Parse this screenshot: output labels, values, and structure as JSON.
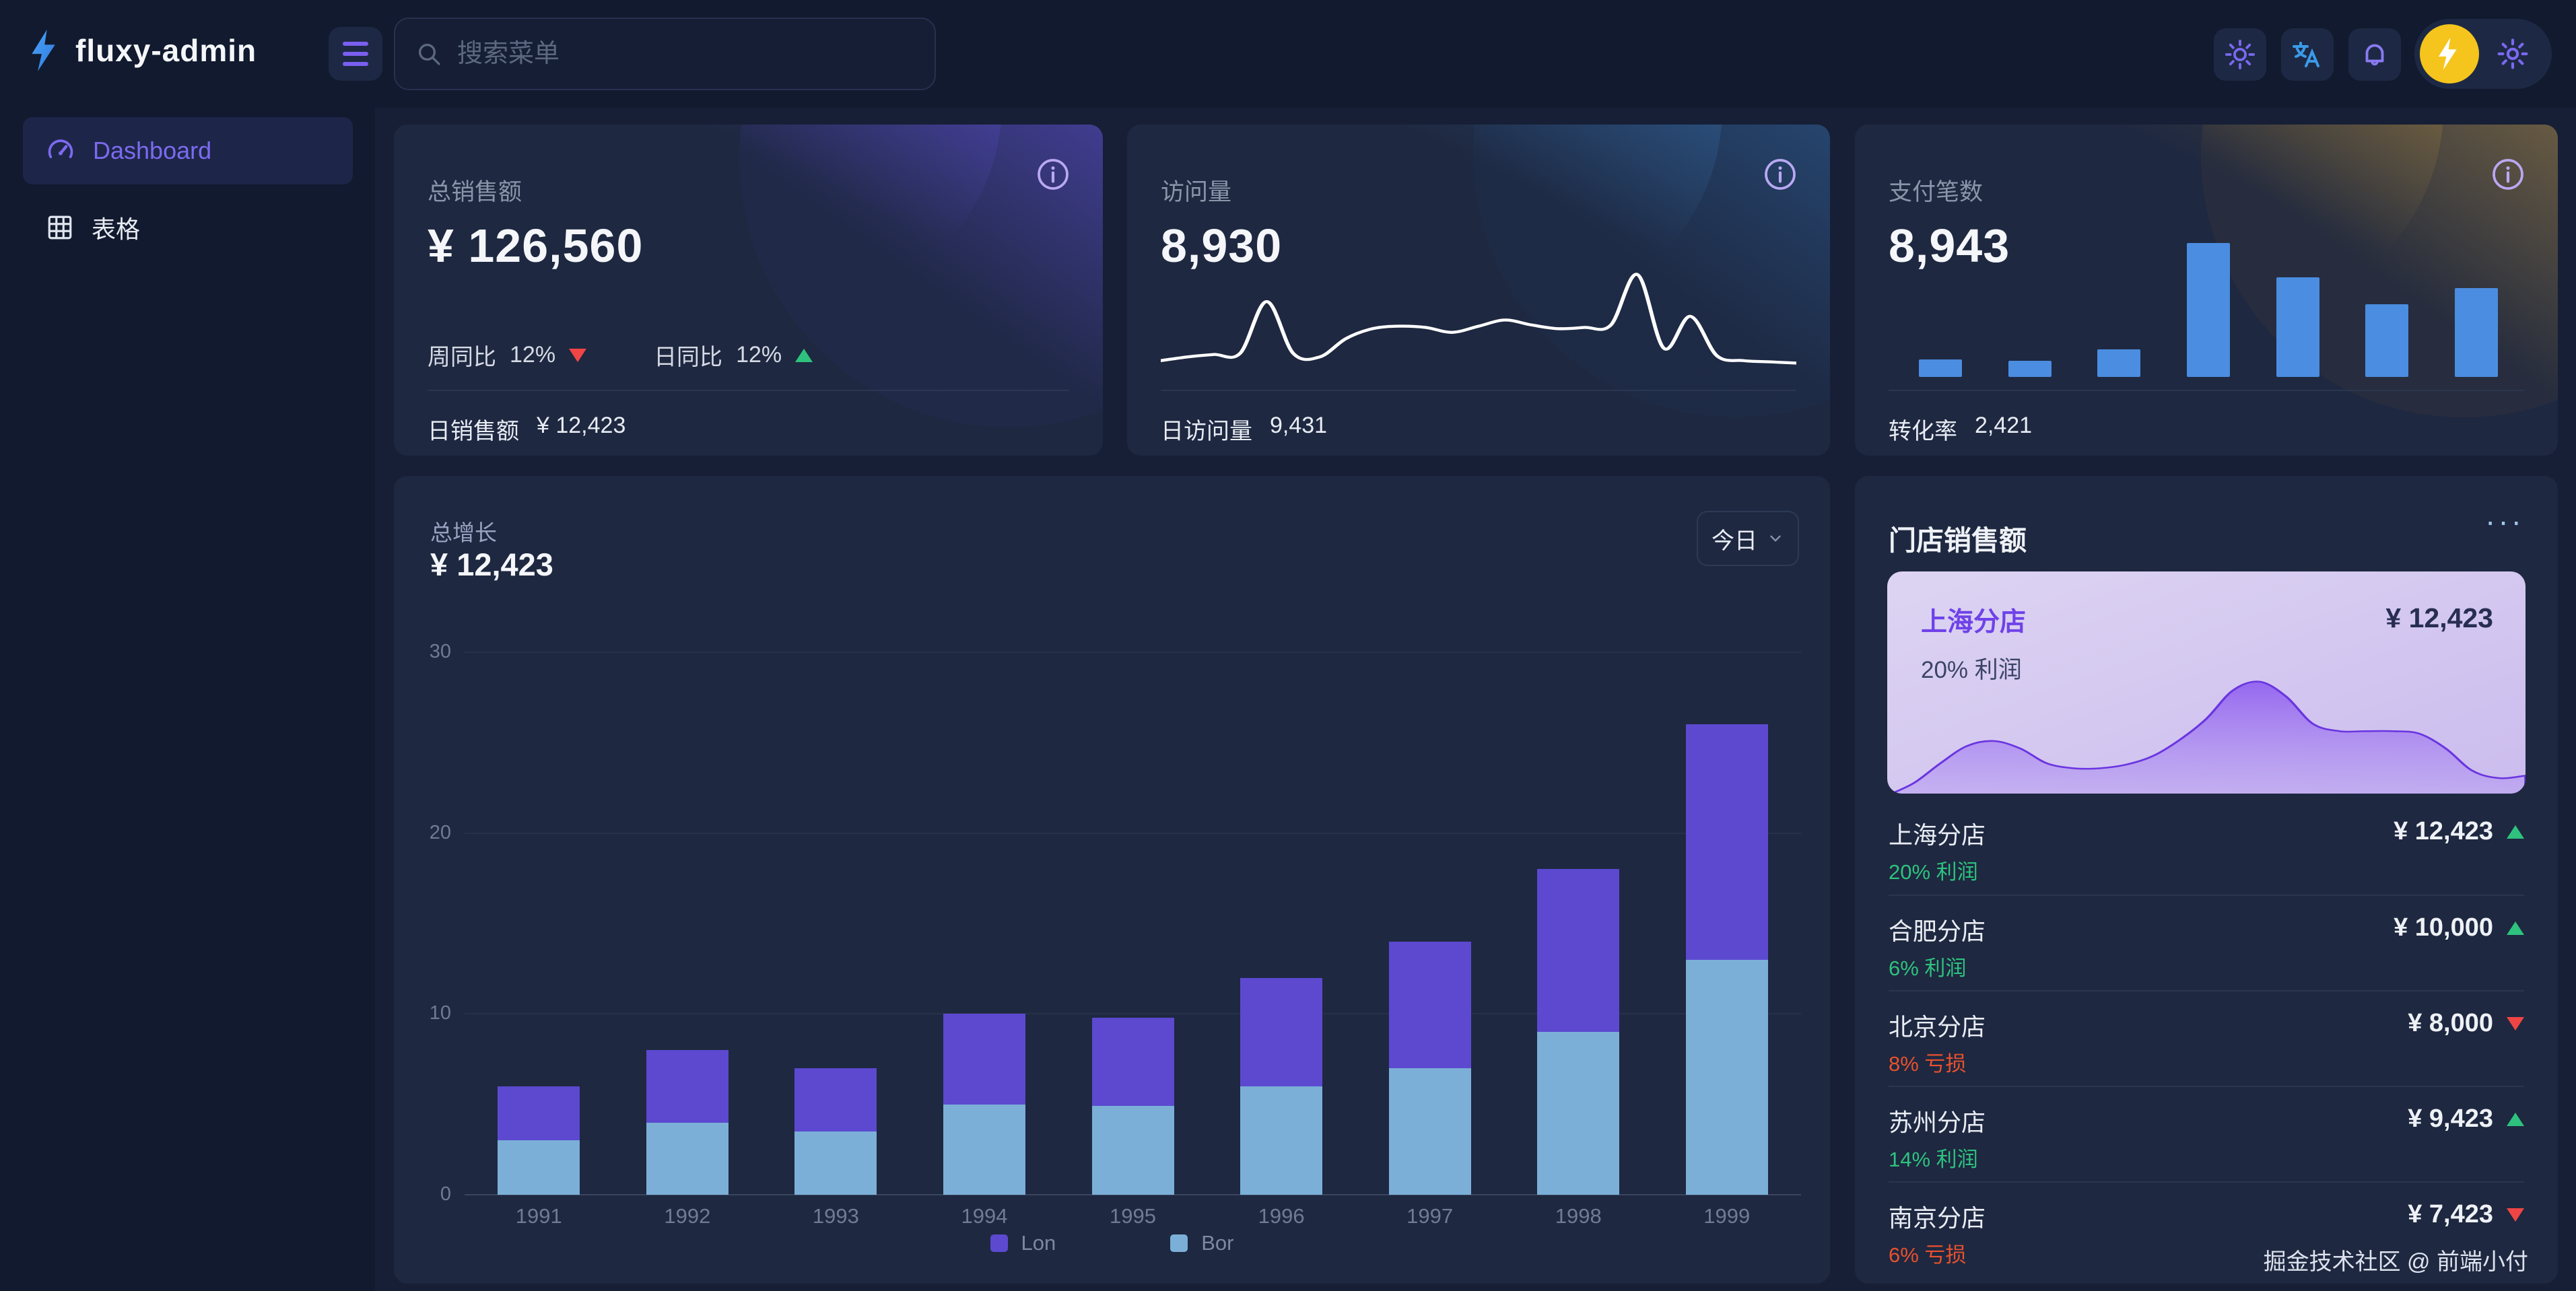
{
  "app": {
    "title": "fluxy-admin"
  },
  "topbar": {
    "search_placeholder": "搜索菜单"
  },
  "sidebar": {
    "items": [
      {
        "label": "Dashboard"
      },
      {
        "label": "表格"
      }
    ]
  },
  "stat_cards": [
    {
      "title": "总销售额",
      "value": "¥ 126,560",
      "week_label": "周同比",
      "week_value": "12%",
      "week_trend": "down",
      "day_label": "日同比",
      "day_value": "12%",
      "day_trend": "up",
      "footer_label": "日销售额",
      "footer_value": "¥ 12,423"
    },
    {
      "title": "访问量",
      "value": "8,930",
      "footer_label": "日访问量",
      "footer_value": "9,431"
    },
    {
      "title": "支付笔数",
      "value": "8,943",
      "footer_label": "转化率",
      "footer_value": "2,421"
    }
  ],
  "growth": {
    "title": "总增长",
    "value": "¥ 12,423",
    "range_label": "今日"
  },
  "store_sales": {
    "title": "门店销售额",
    "menu_label": "···",
    "highlight": {
      "name": "上海分店",
      "value": "¥ 12,423",
      "profit": "20% 利润"
    },
    "items": [
      {
        "name": "上海分店",
        "profit": "20% 利润",
        "value": "¥ 12,423",
        "trend": "up"
      },
      {
        "name": "合肥分店",
        "profit": "6% 利润",
        "value": "¥ 10,000",
        "trend": "up"
      },
      {
        "name": "北京分店",
        "profit": "8% 亏损",
        "value": "¥ 8,000",
        "trend": "down"
      },
      {
        "name": "苏州分店",
        "profit": "14% 利润",
        "value": "¥ 9,423",
        "trend": "up"
      },
      {
        "name": "南京分店",
        "profit": "6% 亏损",
        "value": "¥ 7,423",
        "trend": "down"
      }
    ],
    "credit": "掘金技术社区 @ 前端小付"
  },
  "colors": {
    "accent_purple": "#7a5ff0",
    "bar_purple": "#5c49d0",
    "bar_blue": "#7bafd8",
    "mini_bar_blue": "#4b8de0",
    "up_green": "#2ec27e",
    "down_red": "#e8512e",
    "avatar_yellow": "#f5c51d",
    "translate_blue": "#3b9ae8",
    "logo_blue": "#2f8df0"
  },
  "chart_data": [
    {
      "type": "bar",
      "stacked": true,
      "title": "总增长",
      "categories": [
        "1991",
        "1992",
        "1993",
        "1994",
        "1995",
        "1996",
        "1997",
        "1998",
        "1999"
      ],
      "series": [
        {
          "name": "Lon",
          "color": "#5c49d0",
          "values": [
            3,
            4,
            3.5,
            5,
            4.9,
            6,
            7,
            9,
            13
          ]
        },
        {
          "name": "Bor",
          "color": "#7bafd8",
          "values": [
            3,
            4,
            3.5,
            5,
            4.9,
            6,
            7,
            9,
            13
          ]
        }
      ],
      "ylim": [
        0,
        30
      ],
      "yticks": [
        0,
        10,
        20,
        30
      ],
      "grid": true,
      "legend_position": "bottom"
    },
    {
      "type": "bar",
      "title": "支付笔数迷你柱状图",
      "values": [
        13,
        12,
        20,
        98,
        73,
        53,
        65
      ],
      "unit": "relative-height-%"
    },
    {
      "type": "line",
      "title": "访问量走势",
      "values": [
        10,
        13,
        15,
        16,
        58,
        16,
        13,
        28,
        36,
        38,
        37,
        33,
        38,
        43,
        39,
        36,
        37,
        39,
        80,
        20,
        46,
        14,
        10,
        9,
        8
      ],
      "unit": "relative-height-%"
    },
    {
      "type": "area",
      "title": "上海分店销售走势",
      "values": [
        0,
        10,
        26,
        40,
        44,
        38,
        26,
        22,
        22,
        25,
        32,
        45,
        62,
        85,
        92,
        80,
        58,
        52,
        52,
        52,
        50,
        38,
        20,
        14,
        16
      ],
      "unit": "relative-height-%"
    }
  ]
}
